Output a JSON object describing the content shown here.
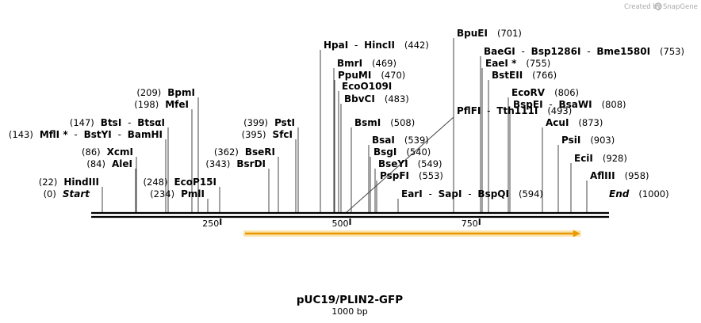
{
  "credit": {
    "text": "Created by",
    "brand": "SnapGene",
    "logo_icon": "snapgene-logo-icon"
  },
  "map": {
    "name": "pUC19/PLIN2-GFP",
    "length_label": "1000 bp",
    "total_bp": 1000,
    "ticks": [
      {
        "bp": 250,
        "label": "250"
      },
      {
        "bp": 500,
        "label": "500"
      },
      {
        "bp": 750,
        "label": "750"
      }
    ],
    "feature": {
      "name": "orange-arrow-feature",
      "start_bp": 297,
      "end_bp": 943,
      "direction": "forward",
      "color": "#f5a000"
    }
  },
  "site_labels": [
    {
      "bp": 0,
      "pos": "(0)",
      "names": [
        "Start"
      ],
      "italic": true
    },
    {
      "bp": 1000,
      "pos": "(1000)",
      "names": [
        "End"
      ],
      "italic": true
    },
    {
      "bp": 22,
      "pos": "(22)",
      "names": [
        "HindIII"
      ]
    },
    {
      "bp": 84,
      "pos": "(84)",
      "names": [
        "AleI"
      ]
    },
    {
      "bp": 86,
      "pos": "(86)",
      "names": [
        "XcmI"
      ]
    },
    {
      "bp": 143,
      "pos": "(143)",
      "names": [
        "MflI *",
        "BstYI",
        "BamHI"
      ]
    },
    {
      "bp": 147,
      "pos": "(147)",
      "names": [
        "BtsI",
        "BtsαI"
      ]
    },
    {
      "bp": 198,
      "pos": "(198)",
      "names": [
        "MfeI"
      ]
    },
    {
      "bp": 209,
      "pos": "(209)",
      "names": [
        "BpmI"
      ]
    },
    {
      "bp": 234,
      "pos": "(234)",
      "names": [
        "PmlI"
      ]
    },
    {
      "bp": 248,
      "pos": "(248)",
      "names": [
        "EcoP15I"
      ]
    },
    {
      "bp": 343,
      "pos": "(343)",
      "names": [
        "BsrDI"
      ]
    },
    {
      "bp": 362,
      "pos": "(362)",
      "names": [
        "BseRI"
      ]
    },
    {
      "bp": 395,
      "pos": "(395)",
      "names": [
        "SfcI"
      ]
    },
    {
      "bp": 399,
      "pos": "(399)",
      "names": [
        "PstI"
      ]
    },
    {
      "bp": 442,
      "pos": "(442)",
      "names": [
        "HpaI",
        "HincII"
      ]
    },
    {
      "bp": 469,
      "pos": "(469)",
      "names": [
        "BmrI"
      ]
    },
    {
      "bp": 470,
      "pos": "(470)",
      "names": [
        "PpuMI"
      ]
    },
    {
      "bp": 478,
      "pos": "",
      "names": [
        "EcoO109I"
      ]
    },
    {
      "bp": 483,
      "pos": "(483)",
      "names": [
        "BbvCI"
      ]
    },
    {
      "bp": 493,
      "pos": "(493)",
      "names": [
        "PflFI",
        "Tth111I"
      ]
    },
    {
      "bp": 508,
      "pos": "(508)",
      "names": [
        "BsmI"
      ]
    },
    {
      "bp": 539,
      "pos": "(539)",
      "names": [
        "BsaI"
      ]
    },
    {
      "bp": 540,
      "pos": "(540)",
      "names": [
        "BsgI"
      ]
    },
    {
      "bp": 549,
      "pos": "(549)",
      "names": [
        "BseYI"
      ]
    },
    {
      "bp": 553,
      "pos": "(553)",
      "names": [
        "PspFI"
      ]
    },
    {
      "bp": 594,
      "pos": "(594)",
      "names": [
        "EarI",
        "SapI",
        "BspQI"
      ]
    },
    {
      "bp": 701,
      "pos": "(701)",
      "names": [
        "BpuEI"
      ]
    },
    {
      "bp": 753,
      "pos": "(753)",
      "names": [
        "BaeGI",
        "Bsp1286I",
        "Bme1580I"
      ]
    },
    {
      "bp": 755,
      "pos": "(755)",
      "names": [
        "EaeI *"
      ]
    },
    {
      "bp": 766,
      "pos": "(766)",
      "names": [
        "BstEII"
      ]
    },
    {
      "bp": 806,
      "pos": "(806)",
      "names": [
        "EcoRV"
      ]
    },
    {
      "bp": 808,
      "pos": "(808)",
      "names": [
        "BspEI",
        "BsaWI"
      ]
    },
    {
      "bp": 873,
      "pos": "(873)",
      "names": [
        "AcuI"
      ]
    },
    {
      "bp": 903,
      "pos": "(903)",
      "names": [
        "PsiI"
      ]
    },
    {
      "bp": 928,
      "pos": "(928)",
      "names": [
        "EciI"
      ]
    },
    {
      "bp": 958,
      "pos": "(958)",
      "names": [
        "AflIII"
      ]
    }
  ]
}
